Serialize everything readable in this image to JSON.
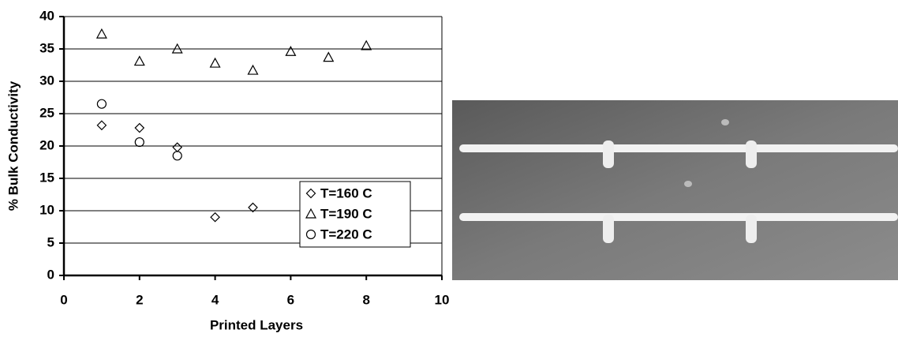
{
  "chart_data": {
    "type": "scatter",
    "xlabel": "Printed Layers",
    "ylabel": "% Bulk Conductivity",
    "xlim": [
      0,
      10
    ],
    "xticks": [
      0,
      2,
      4,
      6,
      8,
      10
    ],
    "ylim": [
      0,
      40
    ],
    "yticks": [
      0,
      5,
      10,
      15,
      20,
      25,
      30,
      35,
      40
    ],
    "grid": true,
    "legend": "lower right",
    "series": [
      {
        "name": "T=160 C",
        "color": "#000000",
        "marker": "diamond",
        "x": [
          1,
          2,
          3,
          4,
          5
        ],
        "values": [
          23.2,
          22.8,
          19.8,
          9,
          10.5
        ]
      },
      {
        "name": "T=190 C",
        "color": "#000000",
        "marker": "triangle",
        "x": [
          1,
          2,
          3,
          4,
          5,
          6,
          7,
          8
        ],
        "values": [
          37.3,
          33.1,
          35,
          32.8,
          31.7,
          34.6,
          33.7,
          35.5
        ]
      },
      {
        "name": "T=220 C",
        "color": "#000000",
        "marker": "circle",
        "x": [
          1,
          2,
          3
        ],
        "values": [
          26.5,
          20.6,
          18.5
        ]
      }
    ]
  }
}
